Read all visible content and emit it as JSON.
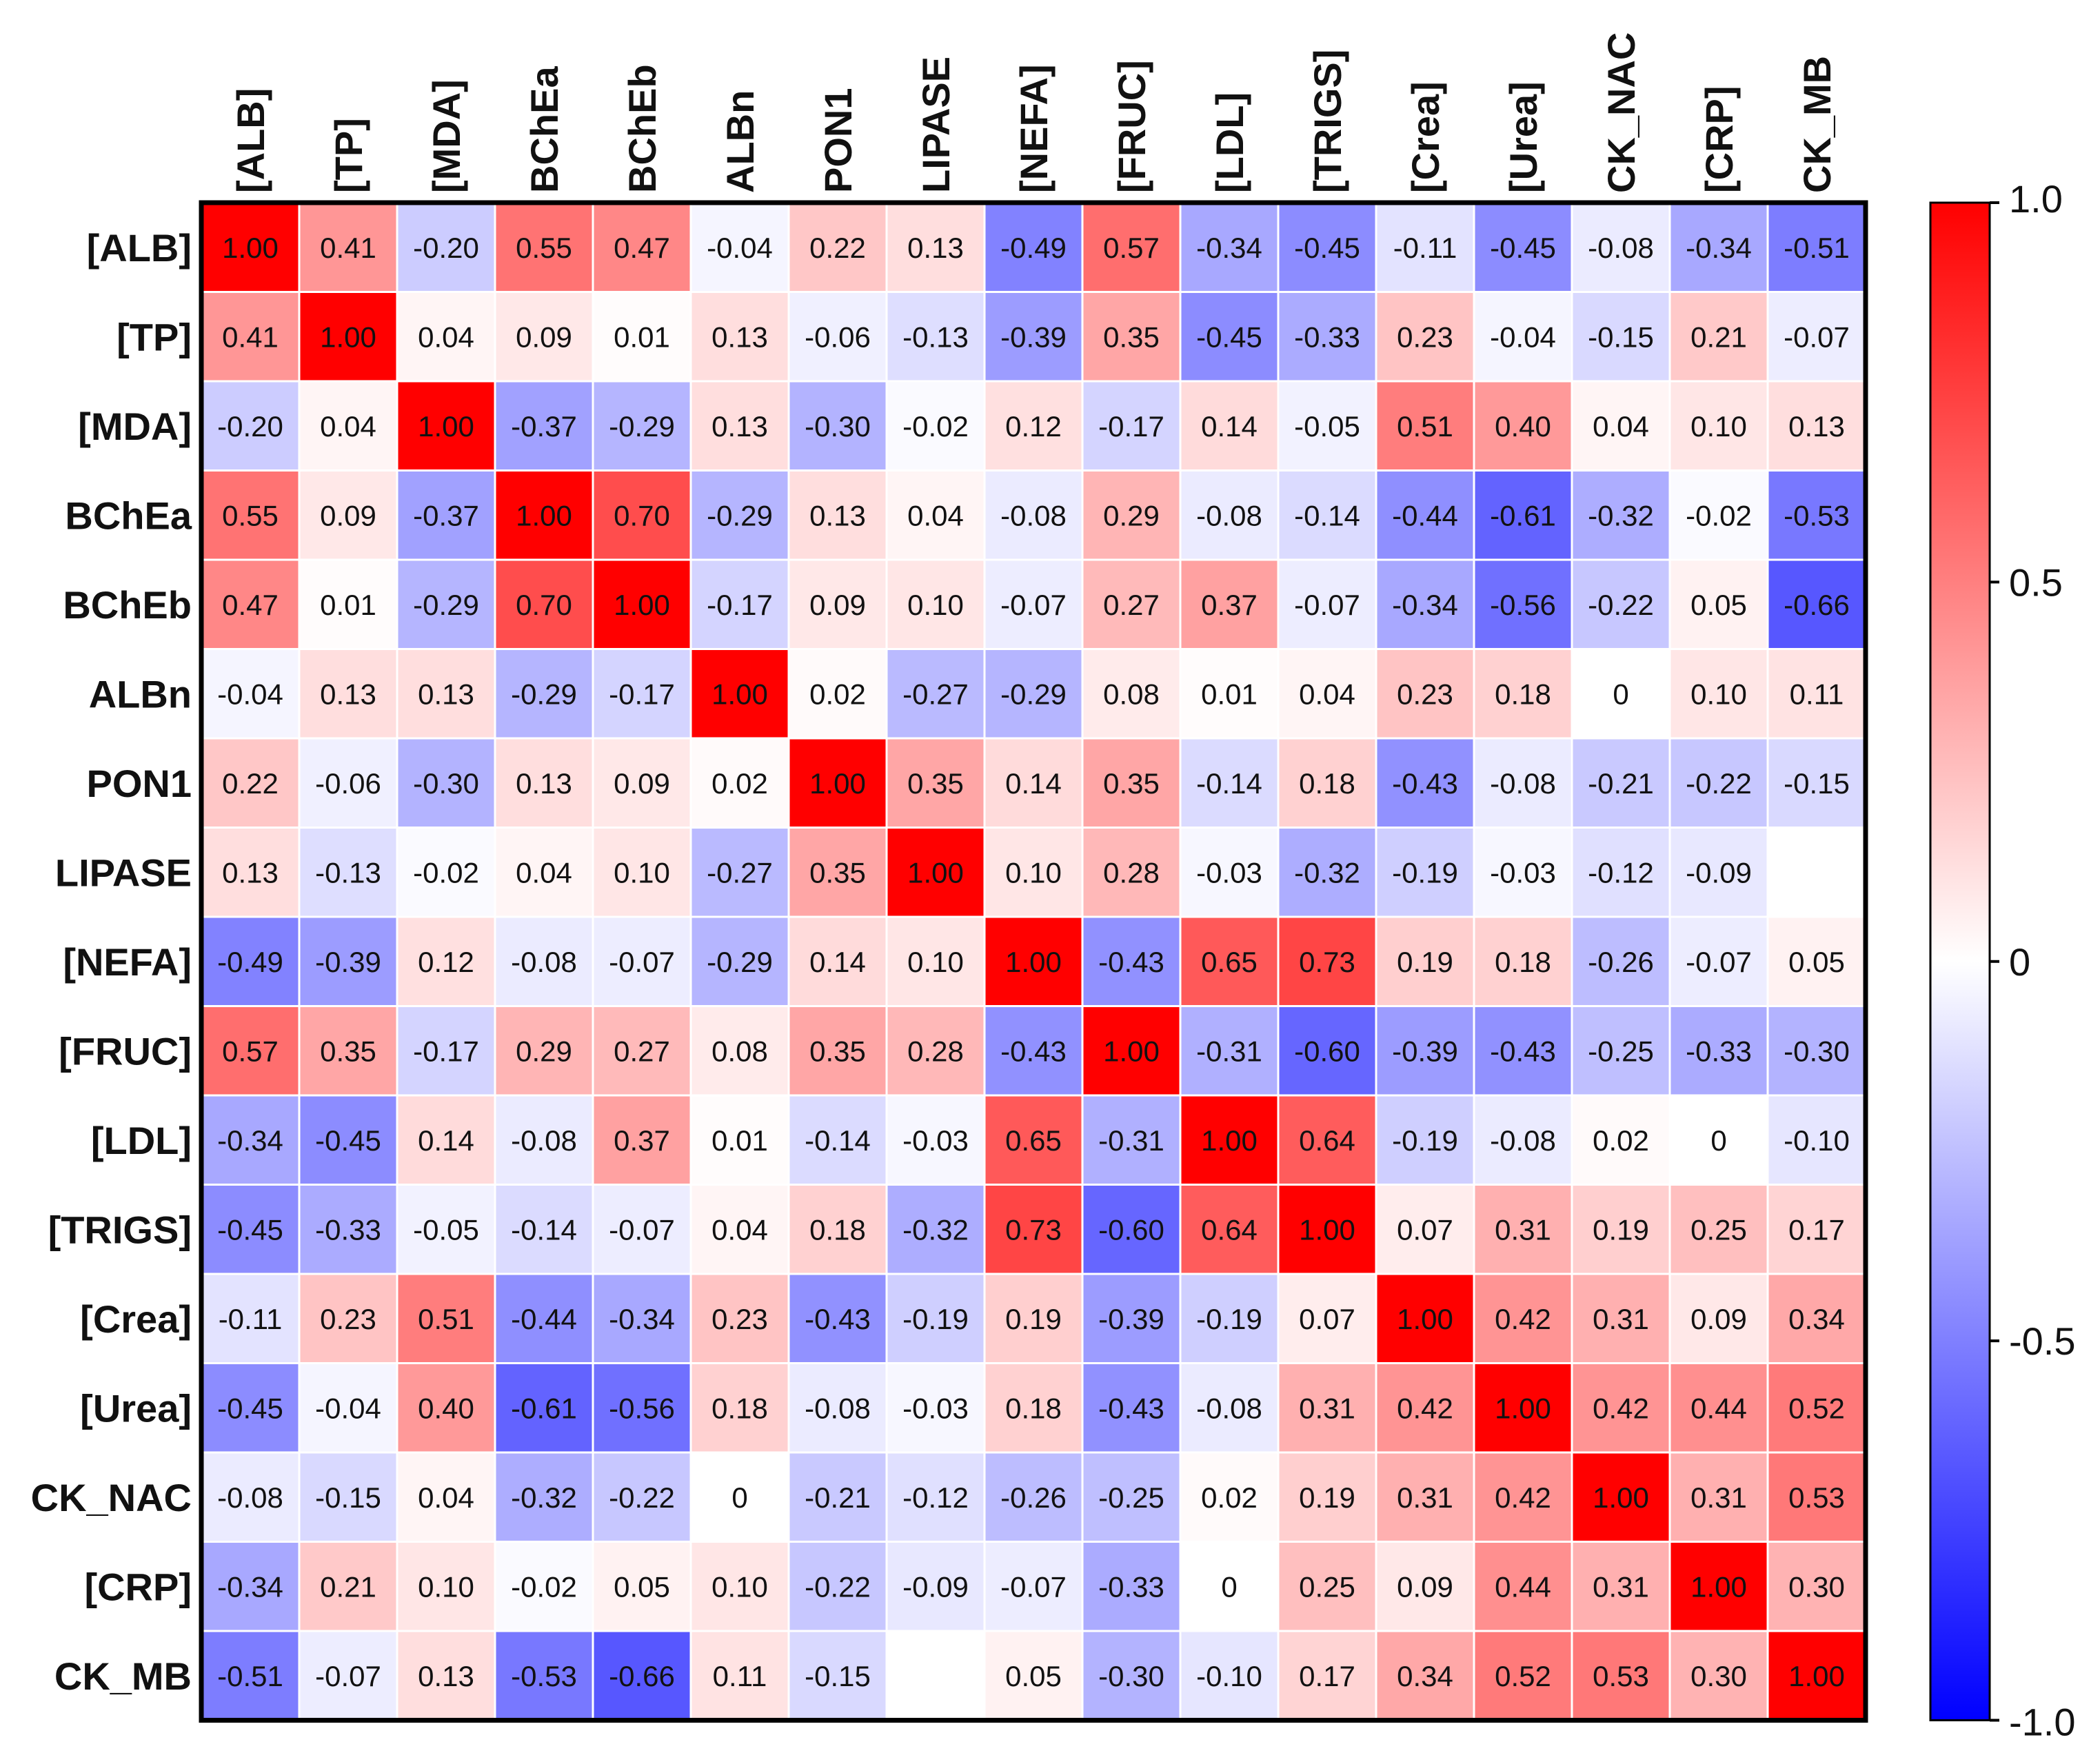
{
  "chart_data": {
    "type": "heatmap",
    "title": "",
    "row_labels": [
      "[ALB]",
      "[TP]",
      "[MDA]",
      "BChEa",
      "BChEb",
      "ALBn",
      "PON1",
      "LIPASE",
      "[NEFA]",
      "[FRUC]",
      "[LDL]",
      "[TRIGS]",
      "[Crea]",
      "[Urea]",
      "CK_NAC",
      "[CRP]",
      "CK_MB"
    ],
    "col_labels": [
      "[ALB]",
      "[TP]",
      "[MDA]",
      "BChEa",
      "BChEb",
      "ALBn",
      "PON1",
      "LIPASE",
      "[NEFA]",
      "[FRUC]",
      "[LDL]",
      "[TRIGS]",
      "[Crea]",
      "[Urea]",
      "CK_NAC",
      "[CRP]",
      "CK_MB"
    ],
    "values": [
      [
        1.0,
        0.41,
        -0.2,
        0.55,
        0.47,
        -0.04,
        0.22,
        0.13,
        -0.49,
        0.57,
        -0.34,
        -0.45,
        -0.11,
        -0.45,
        -0.08,
        -0.34,
        -0.51
      ],
      [
        0.41,
        1.0,
        0.04,
        0.09,
        0.01,
        0.13,
        -0.06,
        -0.13,
        -0.39,
        0.35,
        -0.45,
        -0.33,
        0.23,
        -0.04,
        -0.15,
        0.21,
        -0.07
      ],
      [
        -0.2,
        0.04,
        1.0,
        -0.37,
        -0.29,
        0.13,
        -0.3,
        -0.02,
        0.12,
        -0.17,
        0.14,
        -0.05,
        0.51,
        0.4,
        0.04,
        0.1,
        0.13
      ],
      [
        0.55,
        0.09,
        -0.37,
        1.0,
        0.7,
        -0.29,
        0.13,
        0.04,
        -0.08,
        0.29,
        -0.08,
        -0.14,
        -0.44,
        -0.61,
        -0.32,
        -0.02,
        -0.53
      ],
      [
        0.47,
        0.01,
        -0.29,
        0.7,
        1.0,
        -0.17,
        0.09,
        0.1,
        -0.07,
        0.27,
        0.37,
        -0.07,
        -0.34,
        -0.56,
        -0.22,
        0.05,
        -0.66
      ],
      [
        -0.04,
        0.13,
        0.13,
        -0.29,
        -0.17,
        1.0,
        0.02,
        -0.27,
        -0.29,
        0.08,
        0.01,
        0.04,
        0.23,
        0.18,
        0,
        0.1,
        0.11
      ],
      [
        0.22,
        -0.06,
        -0.3,
        0.13,
        0.09,
        0.02,
        1.0,
        0.35,
        0.14,
        0.35,
        -0.14,
        0.18,
        -0.43,
        -0.08,
        -0.21,
        -0.22,
        -0.15
      ],
      [
        0.13,
        -0.13,
        -0.02,
        0.04,
        0.1,
        -0.27,
        0.35,
        1.0,
        0.1,
        0.28,
        -0.03,
        -0.32,
        -0.19,
        -0.03,
        -0.12,
        -0.09,
        null
      ],
      [
        -0.49,
        -0.39,
        0.12,
        -0.08,
        -0.07,
        -0.29,
        0.14,
        0.1,
        1.0,
        -0.43,
        0.65,
        0.73,
        0.19,
        0.18,
        -0.26,
        -0.07,
        0.05
      ],
      [
        0.57,
        0.35,
        -0.17,
        0.29,
        0.27,
        0.08,
        0.35,
        0.28,
        -0.43,
        1.0,
        -0.31,
        -0.6,
        -0.39,
        -0.43,
        -0.25,
        -0.33,
        -0.3
      ],
      [
        -0.34,
        -0.45,
        0.14,
        -0.08,
        0.37,
        0.01,
        -0.14,
        -0.03,
        0.65,
        -0.31,
        1.0,
        0.64,
        -0.19,
        -0.08,
        0.02,
        0,
        -0.1
      ],
      [
        -0.45,
        -0.33,
        -0.05,
        -0.14,
        -0.07,
        0.04,
        0.18,
        -0.32,
        0.73,
        -0.6,
        0.64,
        1.0,
        0.07,
        0.31,
        0.19,
        0.25,
        0.17
      ],
      [
        -0.11,
        0.23,
        0.51,
        -0.44,
        -0.34,
        0.23,
        -0.43,
        -0.19,
        0.19,
        -0.39,
        -0.19,
        0.07,
        1.0,
        0.42,
        0.31,
        0.09,
        0.34
      ],
      [
        -0.45,
        -0.04,
        0.4,
        -0.61,
        -0.56,
        0.18,
        -0.08,
        -0.03,
        0.18,
        -0.43,
        -0.08,
        0.31,
        0.42,
        1.0,
        0.42,
        0.44,
        0.52
      ],
      [
        -0.08,
        -0.15,
        0.04,
        -0.32,
        -0.22,
        0,
        -0.21,
        -0.12,
        -0.26,
        -0.25,
        0.02,
        0.19,
        0.31,
        0.42,
        1.0,
        0.31,
        0.53
      ],
      [
        -0.34,
        0.21,
        0.1,
        -0.02,
        0.05,
        0.1,
        -0.22,
        -0.09,
        -0.07,
        -0.33,
        0,
        0.25,
        0.09,
        0.44,
        0.31,
        1.0,
        0.3
      ],
      [
        -0.51,
        -0.07,
        0.13,
        -0.53,
        -0.66,
        0.11,
        -0.15,
        null,
        0.05,
        -0.3,
        -0.1,
        0.17,
        0.34,
        0.52,
        0.53,
        0.3,
        1.0
      ]
    ],
    "labels": [
      [
        "1.00",
        "0.41",
        "-0.20",
        "0.55",
        "0.47",
        "-0.04",
        "0.22",
        "0.13",
        "-0.49",
        "0.57",
        "-0.34",
        "-0.45",
        "-0.11",
        "-0.45",
        "-0.08",
        "-0.34",
        "-0.51"
      ],
      [
        "0.41",
        "1.00",
        "0.04",
        "0.09",
        "0.01",
        "0.13",
        "-0.06",
        "-0.13",
        "-0.39",
        "0.35",
        "-0.45",
        "-0.33",
        "0.23",
        "-0.04",
        "-0.15",
        "0.21",
        "-0.07"
      ],
      [
        "-0.20",
        "0.04",
        "1.00",
        "-0.37",
        "-0.29",
        "0.13",
        "-0.30",
        "-0.02",
        "0.12",
        "-0.17",
        "0.14",
        "-0.05",
        "0.51",
        "0.40",
        "0.04",
        "0.10",
        "0.13"
      ],
      [
        "0.55",
        "0.09",
        "-0.37",
        "1.00",
        "0.70",
        "-0.29",
        "0.13",
        "0.04",
        "-0.08",
        "0.29",
        "-0.08",
        "-0.14",
        "-0.44",
        "-0.61",
        "-0.32",
        "-0.02",
        "-0.53"
      ],
      [
        "0.47",
        "0.01",
        "-0.29",
        "0.70",
        "1.00",
        "-0.17",
        "0.09",
        "0.10",
        "-0.07",
        "0.27",
        "0.37",
        "-0.07",
        "-0.34",
        "-0.56",
        "-0.22",
        "0.05",
        "-0.66"
      ],
      [
        "-0.04",
        "0.13",
        "0.13",
        "-0.29",
        "-0.17",
        "1.00",
        "0.02",
        "-0.27",
        "-0.29",
        "0.08",
        "0.01",
        "0.04",
        "0.23",
        "0.18",
        "0",
        "0.10",
        "0.11"
      ],
      [
        "0.22",
        "-0.06",
        "-0.30",
        "0.13",
        "0.09",
        "0.02",
        "1.00",
        "0.35",
        "0.14",
        "0.35",
        "-0.14",
        "0.18",
        "-0.43",
        "-0.08",
        "-0.21",
        "-0.22",
        "-0.15"
      ],
      [
        "0.13",
        "-0.13",
        "-0.02",
        "0.04",
        "0.10",
        "-0.27",
        "0.35",
        "1.00",
        "0.10",
        "0.28",
        "-0.03",
        "-0.32",
        "-0.19",
        "-0.03",
        "-0.12",
        "-0.09",
        ""
      ],
      [
        "-0.49",
        "-0.39",
        "0.12",
        "-0.08",
        "-0.07",
        "-0.29",
        "0.14",
        "0.10",
        "1.00",
        "-0.43",
        "0.65",
        "0.73",
        "0.19",
        "0.18",
        "-0.26",
        "-0.07",
        "0.05"
      ],
      [
        "0.57",
        "0.35",
        "-0.17",
        "0.29",
        "0.27",
        "0.08",
        "0.35",
        "0.28",
        "-0.43",
        "1.00",
        "-0.31",
        "-0.60",
        "-0.39",
        "-0.43",
        "-0.25",
        "-0.33",
        "-0.30"
      ],
      [
        "-0.34",
        "-0.45",
        "0.14",
        "-0.08",
        "0.37",
        "0.01",
        "-0.14",
        "-0.03",
        "0.65",
        "-0.31",
        "1.00",
        "0.64",
        "-0.19",
        "-0.08",
        "0.02",
        "0",
        "-0.10"
      ],
      [
        "-0.45",
        "-0.33",
        "-0.05",
        "-0.14",
        "-0.07",
        "0.04",
        "0.18",
        "-0.32",
        "0.73",
        "-0.60",
        "0.64",
        "1.00",
        "0.07",
        "0.31",
        "0.19",
        "0.25",
        "0.17"
      ],
      [
        "-0.11",
        "0.23",
        "0.51",
        "-0.44",
        "-0.34",
        "0.23",
        "-0.43",
        "-0.19",
        "0.19",
        "-0.39",
        "-0.19",
        "0.07",
        "1.00",
        "0.42",
        "0.31",
        "0.09",
        "0.34"
      ],
      [
        "-0.45",
        "-0.04",
        "0.40",
        "-0.61",
        "-0.56",
        "0.18",
        "-0.08",
        "-0.03",
        "0.18",
        "-0.43",
        "-0.08",
        "0.31",
        "0.42",
        "1.00",
        "0.42",
        "0.44",
        "0.52"
      ],
      [
        "-0.08",
        "-0.15",
        "0.04",
        "-0.32",
        "-0.22",
        "0",
        "-0.21",
        "-0.12",
        "-0.26",
        "-0.25",
        "0.02",
        "0.19",
        "0.31",
        "0.42",
        "1.00",
        "0.31",
        "0.53"
      ],
      [
        "-0.34",
        "0.21",
        "0.10",
        "-0.02",
        "0.05",
        "0.10",
        "-0.22",
        "-0.09",
        "-0.07",
        "-0.33",
        "0",
        "0.25",
        "0.09",
        "0.44",
        "0.31",
        "1.00",
        "0.30"
      ],
      [
        "-0.51",
        "-0.07",
        "0.13",
        "-0.53",
        "-0.66",
        "0.11",
        "-0.15",
        "",
        "0.05",
        "-0.30",
        "-0.10",
        "0.17",
        "0.34",
        "0.52",
        "0.53",
        "0.30",
        "1.00"
      ]
    ],
    "colorbar": {
      "range": [
        -1.0,
        1.0
      ],
      "ticks": [
        1.0,
        0.5,
        0,
        -0.5,
        -1.0
      ],
      "tick_labels": [
        "1.0",
        "0.5",
        "0",
        "-0.5",
        "-1.0"
      ],
      "colors": {
        "min": "#0000ff",
        "mid": "#ffffff",
        "max": "#ff0000"
      }
    },
    "legend_position": "right",
    "grid": false
  }
}
